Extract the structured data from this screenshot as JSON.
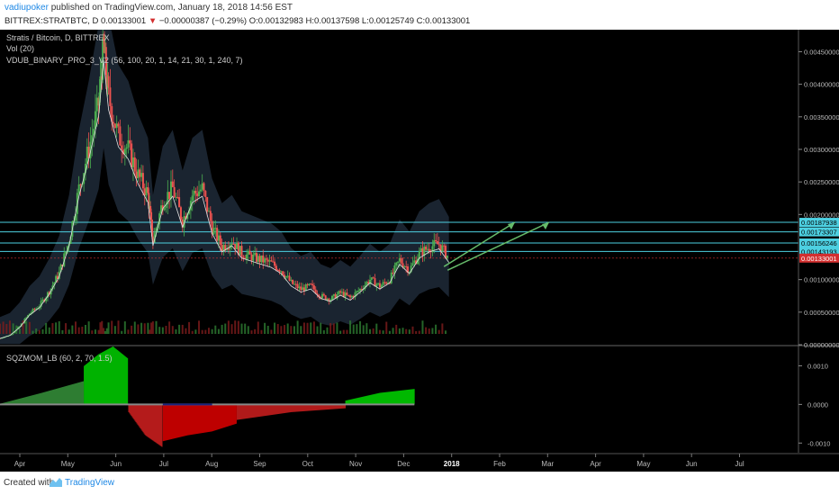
{
  "header": {
    "author": "vadiupoker",
    "published": "published on TradingView.com, January 18, 2018 14:56 EST",
    "symbol_line": "BITTREX:STRATBTC, D 0.00133001",
    "change_arrow": "▼",
    "change": "−0.00000387 (−0.29%)",
    "ohlc": "O:0.00132983 H:0.00137598 L:0.00125749 C:0.00133001",
    "down_color": "#d32f2f",
    "author_color": "#1e88e5"
  },
  "legend": {
    "title": "Stratis / Bitcoin, D, BITTREX",
    "vol": "Vol (20)",
    "indicator": "VDUB_BINARY_PRO_3_V2 (56, 100, 20, 1, 14, 21, 30, 1, 240, 7)"
  },
  "chart_data": {
    "type": "candlestick",
    "price_axis": {
      "min": 0,
      "max": 0.0047,
      "ticks": [
        "0.00450000",
        "0.00400000",
        "0.00350000",
        "0.00300000",
        "0.00250000",
        "0.00200000",
        "0.00100000",
        "0.00050000",
        "0.00000000"
      ],
      "tick_values": [
        0.0045,
        0.004,
        0.0035,
        0.003,
        0.0025,
        0.002,
        0.001,
        0.0005,
        0.0
      ]
    },
    "levels": [
      {
        "label": "0.00187938",
        "value": 0.00187938,
        "color": "#4dd0e1"
      },
      {
        "label": "0.00173307",
        "value": 0.00173307,
        "color": "#4dd0e1"
      },
      {
        "label": "0.00156246",
        "value": 0.00156246,
        "color": "#4dd0e1"
      },
      {
        "label": "0.00143193",
        "value": 0.00143193,
        "color": "#4dd0e1"
      },
      {
        "label": "0.00133001",
        "value": 0.00133001,
        "color": "#d32f2f",
        "current": true
      }
    ],
    "x_labels": [
      "Apr",
      "May",
      "Jun",
      "Jul",
      "Aug",
      "Sep",
      "Oct",
      "Nov",
      "Dec",
      "2018",
      "Feb",
      "Mar",
      "Apr",
      "May",
      "Jun",
      "Jul"
    ],
    "price_path": [
      [
        0,
        0.0001
      ],
      [
        0.02,
        0.00015
      ],
      [
        0.04,
        0.00028
      ],
      [
        0.06,
        0.00048
      ],
      [
        0.08,
        0.0006
      ],
      [
        0.1,
        0.00082
      ],
      [
        0.12,
        0.0011
      ],
      [
        0.14,
        0.0016
      ],
      [
        0.16,
        0.0024
      ],
      [
        0.18,
        0.003
      ],
      [
        0.2,
        0.0037
      ],
      [
        0.21,
        0.0046
      ],
      [
        0.22,
        0.0038
      ],
      [
        0.24,
        0.0032
      ],
      [
        0.26,
        0.003
      ],
      [
        0.28,
        0.0026
      ],
      [
        0.3,
        0.0023
      ],
      [
        0.31,
        0.0016
      ],
      [
        0.33,
        0.0022
      ],
      [
        0.35,
        0.0024
      ],
      [
        0.37,
        0.0019
      ],
      [
        0.39,
        0.0023
      ],
      [
        0.41,
        0.0024
      ],
      [
        0.43,
        0.0018
      ],
      [
        0.45,
        0.0015
      ],
      [
        0.47,
        0.0016
      ],
      [
        0.49,
        0.0014
      ],
      [
        0.51,
        0.00135
      ],
      [
        0.53,
        0.0013
      ],
      [
        0.55,
        0.00125
      ],
      [
        0.57,
        0.00115
      ],
      [
        0.59,
        0.00095
      ],
      [
        0.61,
        0.00085
      ],
      [
        0.63,
        0.0009
      ],
      [
        0.65,
        0.00075
      ],
      [
        0.67,
        0.0007
      ],
      [
        0.69,
        0.0008
      ],
      [
        0.71,
        0.00072
      ],
      [
        0.73,
        0.00085
      ],
      [
        0.75,
        0.001
      ],
      [
        0.77,
        0.0009
      ],
      [
        0.79,
        0.001
      ],
      [
        0.81,
        0.0013
      ],
      [
        0.83,
        0.00115
      ],
      [
        0.85,
        0.0014
      ],
      [
        0.87,
        0.0015
      ],
      [
        0.89,
        0.00155
      ],
      [
        0.91,
        0.00133
      ]
    ],
    "oscillator": {
      "title": "SQZMOM_LB (60, 2, 70, 1.5)",
      "ticks": [
        "0.0010",
        "0.0000",
        "-0.0010"
      ],
      "tick_values": [
        0.001,
        0.0,
        -0.001
      ],
      "min": -0.00125,
      "max": 0.0015,
      "segments": [
        {
          "from": 0,
          "to": 0.17,
          "values": [
            2e-05,
            0.0003,
            0.0006
          ],
          "color": "#2e7d32"
        },
        {
          "from": 0.17,
          "to": 0.26,
          "values": [
            0.001,
            0.0013,
            0.0015,
            0.0012
          ],
          "color": "#00c800"
        },
        {
          "from": 0.26,
          "to": 0.33,
          "values": [
            -0.0002,
            -0.0008,
            -0.0011
          ],
          "color": "#b71c1c"
        },
        {
          "from": 0.33,
          "to": 0.48,
          "values": [
            -0.00095,
            -0.0008,
            -0.0007,
            -0.0005
          ],
          "color": "#d50000"
        },
        {
          "from": 0.48,
          "to": 0.7,
          "values": [
            -0.0004,
            -0.0002,
            -0.0001
          ],
          "color": "#b71c1c"
        },
        {
          "from": 0.7,
          "to": 0.84,
          "values": [
            0.0001,
            0.0003,
            0.0004
          ],
          "color": "#00c800"
        }
      ]
    }
  },
  "footer": {
    "created_with": "Created with",
    "brand": "TradingView"
  }
}
